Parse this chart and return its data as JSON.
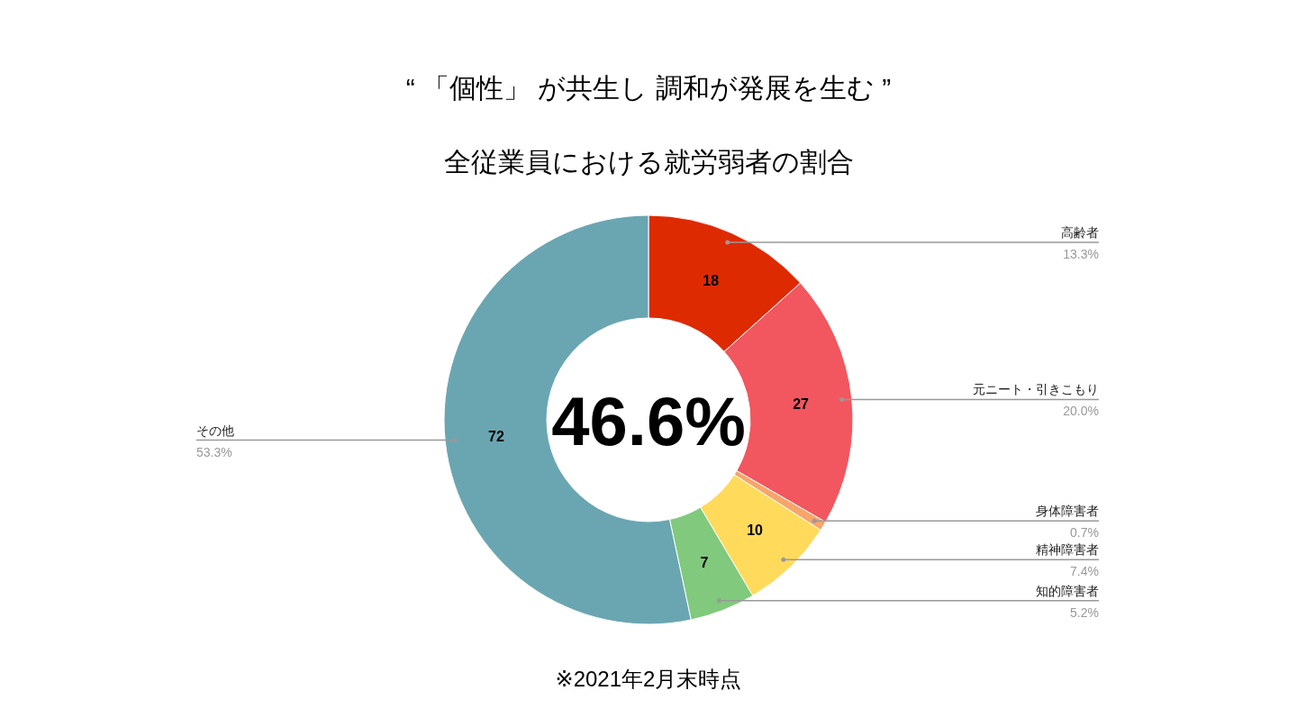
{
  "chart_data": {
    "type": "donut",
    "title": "“ 「個性」 が共生し 調和が発展を生む ”",
    "subtitle": "全従業員における就労弱者の割合",
    "categories": [
      "高齢者",
      "元ニート・引きこもり",
      "身体障害者",
      "精神障害者",
      "知的障害者",
      "その他"
    ],
    "values": [
      18,
      27,
      1,
      10,
      7,
      72
    ],
    "value_labels": [
      "18",
      "27",
      null,
      "10",
      "7",
      "72"
    ],
    "colors": [
      "#de2a00",
      "#f2565f",
      "#f7a56a",
      "#ffda5b",
      "#80c97d",
      "#6aa6b1"
    ],
    "annotations": [
      "46.6%",
      "※2021年2月末時点",
      {
        "text": "13.3%",
        "x": "高齢者"
      },
      {
        "text": "20.0%",
        "x": "元ニート・引きこもり"
      },
      {
        "text": "0.7%",
        "x": "身体障害者"
      },
      {
        "text": "7.4%",
        "x": "精神障害者"
      },
      {
        "text": "5.2%",
        "x": "知的障害者"
      },
      {
        "text": "53.3%",
        "x": "その他"
      }
    ]
  }
}
